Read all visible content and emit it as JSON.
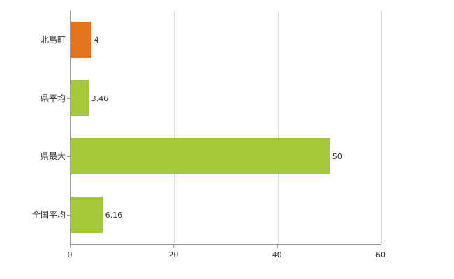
{
  "chart_data": {
    "type": "bar",
    "orientation": "horizontal",
    "title": "",
    "xlabel": "",
    "ylabel": "",
    "categories": [
      "北島町",
      "県平均",
      "県最大",
      "全国平均"
    ],
    "values": [
      4,
      3.46,
      50,
      6.16
    ],
    "value_labels": [
      "4",
      "3.46",
      "50",
      "6.16"
    ],
    "bar_colors": [
      "#e1751e",
      "#a3c93a",
      "#a3c93a",
      "#a3c93a"
    ],
    "xlim": [
      0,
      60
    ],
    "xticks": [
      0,
      20,
      40,
      60
    ],
    "grid": true,
    "legend": null,
    "colors": {
      "axis": "#9a9a9a",
      "gridline": "#dcdcdc",
      "text": "#333333",
      "background": "#ffffff"
    }
  }
}
